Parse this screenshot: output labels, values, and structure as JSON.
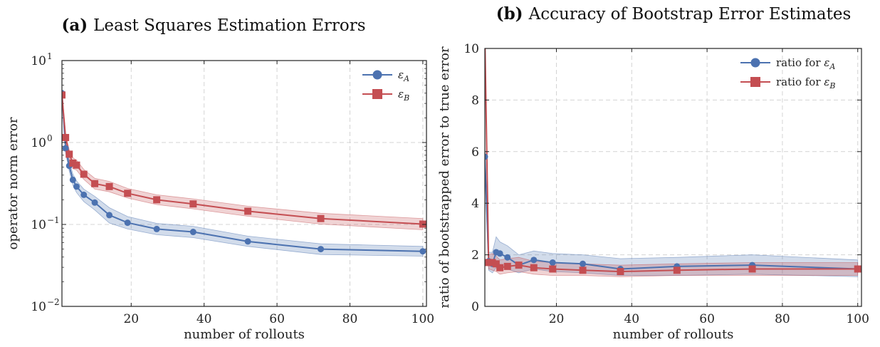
{
  "chart_data": [
    {
      "id": "a",
      "type": "line",
      "title_prefix": "(a)",
      "title": "Least Squares Estimation Errors",
      "xlabel": "number of rollouts",
      "ylabel": "operator norm error",
      "yscale": "log",
      "xlim": [
        1,
        101
      ],
      "ylim": [
        0.01,
        10
      ],
      "xticks": [
        20,
        40,
        60,
        80,
        100
      ],
      "yticks": [
        {
          "value": 0.01,
          "base": "10",
          "exp": "−2"
        },
        {
          "value": 0.1,
          "base": "10",
          "exp": "−1"
        },
        {
          "value": 1,
          "base": "10",
          "exp": "0"
        },
        {
          "value": 10,
          "base": "10",
          "exp": "1"
        }
      ],
      "grid": true,
      "legend_position": "top-right",
      "x": [
        1,
        2,
        3,
        4,
        5,
        7,
        10,
        14,
        19,
        27,
        37,
        52,
        72,
        100
      ],
      "series": [
        {
          "name": "ε_A",
          "legend_label": "ε",
          "legend_sub": "A",
          "color": "#4c72b0",
          "marker": "circle",
          "values": [
            4.0,
            0.85,
            0.52,
            0.35,
            0.29,
            0.23,
            0.185,
            0.13,
            0.105,
            0.088,
            0.081,
            0.062,
            0.05,
            0.047
          ],
          "lower": [
            3.7,
            0.75,
            0.45,
            0.3,
            0.245,
            0.19,
            0.15,
            0.104,
            0.088,
            0.075,
            0.069,
            0.054,
            0.043,
            0.041
          ],
          "upper": [
            4.3,
            0.97,
            0.6,
            0.41,
            0.34,
            0.27,
            0.22,
            0.16,
            0.125,
            0.103,
            0.095,
            0.072,
            0.058,
            0.054
          ]
        },
        {
          "name": "ε_B",
          "legend_label": "ε",
          "legend_sub": "B",
          "color": "#c44e52",
          "marker": "square",
          "values": [
            3.8,
            1.15,
            0.72,
            0.56,
            0.53,
            0.41,
            0.315,
            0.29,
            0.24,
            0.2,
            0.178,
            0.145,
            0.118,
            0.101
          ],
          "lower": [
            3.5,
            1.02,
            0.63,
            0.48,
            0.46,
            0.355,
            0.27,
            0.25,
            0.21,
            0.175,
            0.155,
            0.126,
            0.101,
            0.086
          ],
          "upper": [
            4.1,
            1.3,
            0.82,
            0.65,
            0.61,
            0.47,
            0.365,
            0.335,
            0.275,
            0.23,
            0.205,
            0.167,
            0.137,
            0.118
          ]
        }
      ]
    },
    {
      "id": "b",
      "type": "line",
      "title_prefix": "(b)",
      "title": "Accuracy of Bootstrap Error Estimates",
      "xlabel": "number of rollouts",
      "ylabel": "ratio of bootstrapped error to true error",
      "yscale": "linear",
      "xlim": [
        1,
        101
      ],
      "ylim": [
        0,
        10
      ],
      "xticks": [
        20,
        40,
        60,
        80,
        100
      ],
      "yticks": [
        0,
        2,
        4,
        6,
        8,
        10
      ],
      "grid": true,
      "legend_position": "top-right",
      "x": [
        1,
        2,
        3,
        4,
        5,
        7,
        10,
        14,
        19,
        27,
        37,
        52,
        72,
        100
      ],
      "series": [
        {
          "name": "ratio for ε_A",
          "legend_label": "ratio for ε",
          "legend_sub": "A",
          "color": "#4c72b0",
          "marker": "circle",
          "values": [
            5.8,
            1.75,
            1.65,
            2.1,
            2.05,
            1.9,
            1.6,
            1.8,
            1.7,
            1.65,
            1.45,
            1.55,
            1.6,
            1.45
          ],
          "lower": [
            5.4,
            1.4,
            1.3,
            1.5,
            1.55,
            1.45,
            1.3,
            1.45,
            1.35,
            1.3,
            1.2,
            1.2,
            1.25,
            1.15
          ],
          "upper": [
            6.2,
            2.1,
            2.1,
            2.7,
            2.5,
            2.35,
            2.0,
            2.15,
            2.05,
            2.0,
            1.85,
            1.9,
            2.0,
            1.8
          ]
        },
        {
          "name": "ratio for ε_B",
          "legend_label": "ratio for ε",
          "legend_sub": "B",
          "color": "#c44e52",
          "marker": "square",
          "values": [
            10.5,
            1.7,
            1.7,
            1.65,
            1.5,
            1.55,
            1.6,
            1.5,
            1.45,
            1.4,
            1.35,
            1.4,
            1.45,
            1.45
          ],
          "lower": [
            10.2,
            1.45,
            1.4,
            1.35,
            1.25,
            1.3,
            1.35,
            1.25,
            1.2,
            1.2,
            1.15,
            1.2,
            1.2,
            1.2
          ],
          "upper": [
            10.8,
            2.0,
            2.05,
            1.95,
            1.8,
            1.85,
            1.9,
            1.75,
            1.7,
            1.65,
            1.6,
            1.65,
            1.7,
            1.7
          ]
        }
      ]
    }
  ]
}
